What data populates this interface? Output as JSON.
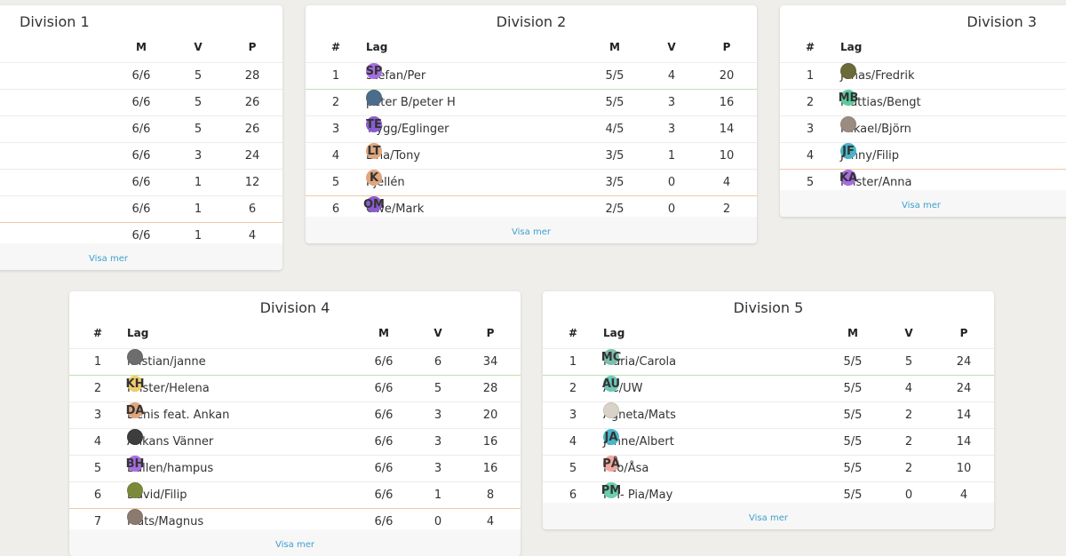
{
  "labels": {
    "rank": "#",
    "team": "Lag",
    "m": "M",
    "v": "V",
    "p": "P",
    "more": "Visa mer"
  },
  "divisions": [
    {
      "title": "Division 1",
      "rows": [
        {
          "m": "6/6",
          "v": "5",
          "p": "28"
        },
        {
          "m": "6/6",
          "v": "5",
          "p": "26"
        },
        {
          "m": "6/6",
          "v": "5",
          "p": "26"
        },
        {
          "m": "6/6",
          "v": "3",
          "p": "24"
        },
        {
          "m": "6/6",
          "v": "1",
          "p": "12"
        },
        {
          "m": "6/6",
          "v": "1",
          "p": "6"
        },
        {
          "m": "6/6",
          "v": "1",
          "p": "4"
        }
      ]
    },
    {
      "title": "Division 2",
      "rows": [
        {
          "rank": "1",
          "team": "Stefan/Per",
          "init": "SP",
          "color": "#a66ee0",
          "m": "5/5",
          "v": "4",
          "p": "20"
        },
        {
          "rank": "2",
          "team": "peter B/peter H",
          "init": "",
          "color": "#4a6d8c",
          "m": "5/5",
          "v": "3",
          "p": "16"
        },
        {
          "rank": "3",
          "team": "Trygg/Eglinger",
          "init": "TE",
          "color": "#8a5cd0",
          "m": "4/5",
          "v": "3",
          "p": "14"
        },
        {
          "rank": "4",
          "team": "Lina/Tony",
          "init": "LT",
          "color": "#e0a67e",
          "m": "3/5",
          "v": "1",
          "p": "10"
        },
        {
          "rank": "5",
          "team": "Kjellén",
          "init": "K",
          "color": "#e0a67e",
          "m": "3/5",
          "v": "0",
          "p": "4"
        },
        {
          "rank": "6",
          "team": "Owe/Mark",
          "init": "OM",
          "color": "#8a5cd0",
          "m": "2/5",
          "v": "0",
          "p": "2"
        }
      ]
    },
    {
      "title": "Division 3",
      "rows": [
        {
          "rank": "1",
          "team": "Jonas/Fredrik",
          "init": "",
          "color": "#6b6b3a"
        },
        {
          "rank": "2",
          "team": "Mattias/Bengt",
          "init": "MB",
          "color": "#5dcba0"
        },
        {
          "rank": "3",
          "team": "Mikael/Björn",
          "init": "",
          "color": "#9a8c80"
        },
        {
          "rank": "4",
          "team": "Jonny/Filip",
          "init": "JF",
          "color": "#4ab5c9"
        },
        {
          "rank": "5",
          "team": "Krister/Anna",
          "init": "KA",
          "color": "#a66ee0"
        }
      ]
    },
    {
      "title": "Division 4",
      "rows": [
        {
          "rank": "1",
          "team": "kristian/janne",
          "init": "",
          "color": "#6d6d6d",
          "m": "6/6",
          "v": "6",
          "p": "34"
        },
        {
          "rank": "2",
          "team": "Krister/Helena",
          "init": "KH",
          "color": "#f2cc6b",
          "m": "6/6",
          "v": "5",
          "p": "28"
        },
        {
          "rank": "3",
          "team": "Denis feat. Ankan",
          "init": "DA",
          "color": "#e0a67e",
          "m": "6/6",
          "v": "3",
          "p": "20"
        },
        {
          "rank": "4",
          "team": "Ankans Vänner",
          "init": "",
          "color": "#3d3d3d",
          "m": "6/6",
          "v": "3",
          "p": "16"
        },
        {
          "rank": "5",
          "team": "Bullen/hampus",
          "init": "BH",
          "color": "#a66ee0",
          "m": "6/6",
          "v": "3",
          "p": "16"
        },
        {
          "rank": "6",
          "team": "David/Filip",
          "init": "",
          "color": "#7a8a3a",
          "m": "6/6",
          "v": "1",
          "p": "8"
        },
        {
          "rank": "7",
          "team": "Mats/Magnus",
          "init": "",
          "color": "#8a7a70",
          "m": "6/6",
          "v": "0",
          "p": "4"
        }
      ]
    },
    {
      "title": "Division 5",
      "rows": [
        {
          "rank": "1",
          "team": "Maria/Carola",
          "init": "MC",
          "color": "#7bbfb0",
          "m": "5/5",
          "v": "5",
          "p": "24"
        },
        {
          "rank": "2",
          "team": "AC/UW",
          "init": "AU",
          "color": "#6cc8b8",
          "m": "5/5",
          "v": "4",
          "p": "24"
        },
        {
          "rank": "3",
          "team": "Agneta/Mats",
          "init": "",
          "color": "#d8d2c8",
          "m": "5/5",
          "v": "2",
          "p": "14"
        },
        {
          "rank": "4",
          "team": "Janne/Albert",
          "init": "JA",
          "color": "#4ab5c9",
          "m": "5/5",
          "v": "2",
          "p": "14"
        },
        {
          "rank": "5",
          "team": "Peo/Åsa",
          "init": "PÅ",
          "color": "#f2a8a0",
          "m": "5/5",
          "v": "2",
          "p": "10"
        },
        {
          "rank": "6",
          "team": "PM- Pia/May",
          "init": "PM",
          "color": "#6cd0b0",
          "m": "5/5",
          "v": "0",
          "p": "4"
        }
      ]
    }
  ]
}
